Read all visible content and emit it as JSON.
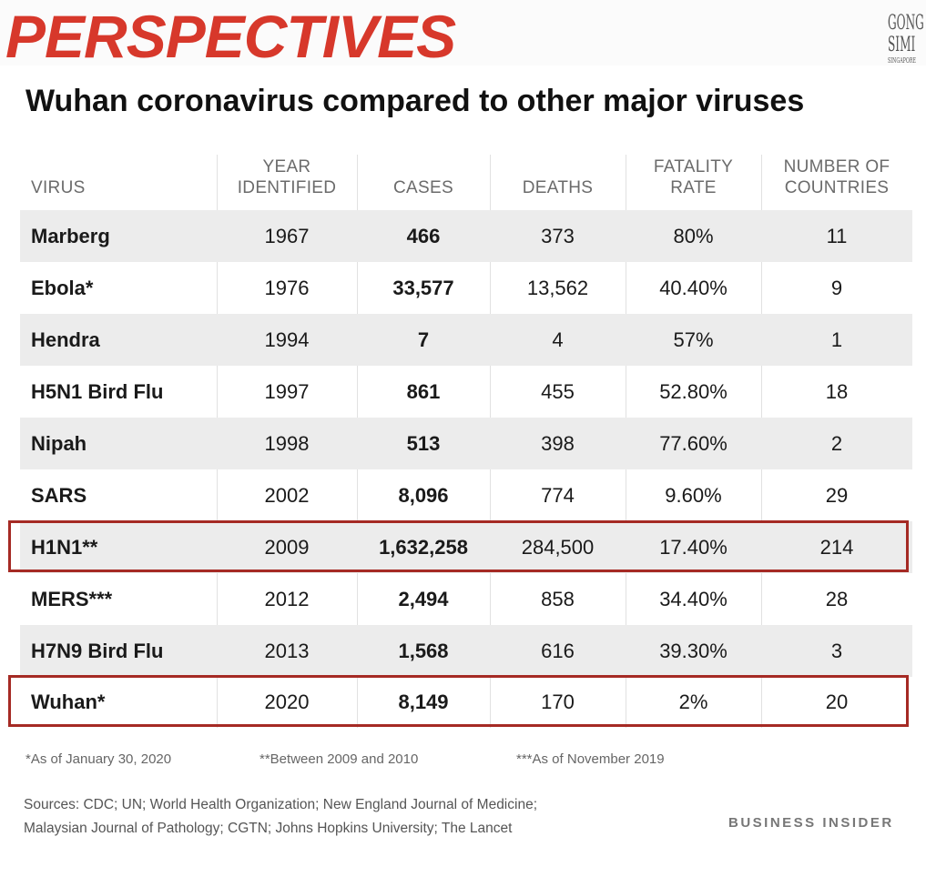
{
  "header": {
    "brand": "PERSPECTIVES",
    "logo_lines": [
      "GONG",
      "SIMI",
      "SINGAPORE"
    ],
    "title": "Wuhan coronavirus compared to other major viruses"
  },
  "table": {
    "columns": {
      "virus": "VIRUS",
      "year_l1": "YEAR",
      "year_l2": "IDENTIFIED",
      "cases": "CASES",
      "deaths": "DEATHS",
      "rate_l1": "FATALITY",
      "rate_l2": "RATE",
      "countries_l1": "NUMBER OF",
      "countries_l2": "COUNTRIES"
    },
    "rows": [
      {
        "virus": "Marberg",
        "year": "1967",
        "cases": "466",
        "deaths": "373",
        "rate": "80%",
        "countries": "11"
      },
      {
        "virus": "Ebola*",
        "year": "1976",
        "cases": "33,577",
        "deaths": "13,562",
        "rate": "40.40%",
        "countries": "9"
      },
      {
        "virus": "Hendra",
        "year": "1994",
        "cases": "7",
        "deaths": "4",
        "rate": "57%",
        "countries": "1"
      },
      {
        "virus": "H5N1 Bird Flu",
        "year": "1997",
        "cases": "861",
        "deaths": "455",
        "rate": "52.80%",
        "countries": "18"
      },
      {
        "virus": "Nipah",
        "year": "1998",
        "cases": "513",
        "deaths": "398",
        "rate": "77.60%",
        "countries": "2"
      },
      {
        "virus": "SARS",
        "year": "2002",
        "cases": "8,096",
        "deaths": "774",
        "rate": "9.60%",
        "countries": "29"
      },
      {
        "virus": "H1N1**",
        "year": "2009",
        "cases": "1,632,258",
        "deaths": "284,500",
        "rate": "17.40%",
        "countries": "214"
      },
      {
        "virus": "MERS***",
        "year": "2012",
        "cases": "2,494",
        "deaths": "858",
        "rate": "34.40%",
        "countries": "28"
      },
      {
        "virus": "H7N9 Bird Flu",
        "year": "2013",
        "cases": "1,568",
        "deaths": "616",
        "rate": "39.30%",
        "countries": "3"
      },
      {
        "virus": "Wuhan*",
        "year": "2020",
        "cases": "8,149",
        "deaths": "170",
        "rate": "2%",
        "countries": "20"
      }
    ],
    "highlight_color": "#a52a24"
  },
  "footnotes": {
    "note1": "*As of January 30, 2020",
    "note2": "**Between 2009 and 2010",
    "note3": "***As of November 2019"
  },
  "sources": {
    "line1": "Sources: CDC; UN; World Health Organization; New England Journal of Medicine;",
    "line2": "Malaysian Journal of Pathology; CGTN; Johns Hopkins University; The Lancet"
  },
  "publisher": "BUSINESS INSIDER",
  "colors": {
    "brand_red": "#d7382b",
    "shade": "#ececec"
  }
}
